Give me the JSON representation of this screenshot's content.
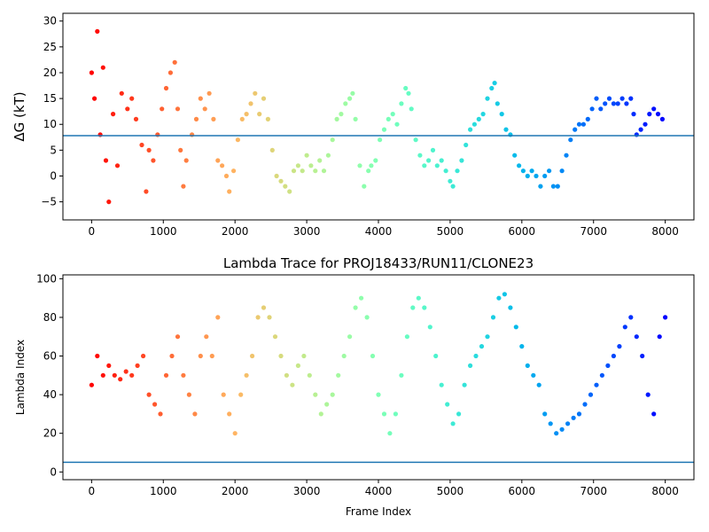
{
  "chart_data": [
    {
      "type": "scatter",
      "title": "",
      "xlabel": "",
      "ylabel": "ΔG (kT)",
      "xlim": [
        -400,
        8400
      ],
      "ylim": [
        -8.5,
        31.5
      ],
      "xticks": [
        0,
        1000,
        2000,
        3000,
        4000,
        5000,
        6000,
        7000,
        8000
      ],
      "yticks": [
        -5,
        0,
        5,
        10,
        15,
        20,
        25,
        30
      ],
      "colormap": "rainbow (red at frame 0 through cyan to violet at frame 8000)",
      "hline": 7.8,
      "hline_color": "#1f77b4",
      "series": [
        {
          "x": [
            0,
            40,
            80,
            120,
            160,
            200,
            240,
            300,
            360,
            420,
            500,
            560,
            620,
            700,
            760,
            800,
            860,
            920,
            980,
            1040,
            1100,
            1160,
            1200,
            1240,
            1280,
            1320,
            1400,
            1460,
            1520,
            1580,
            1640,
            1700,
            1760,
            1820,
            1880,
            1920,
            1980,
            2040,
            2100,
            2160,
            2220,
            2280,
            2340,
            2400,
            2460,
            2520,
            2580,
            2640,
            2700,
            2760,
            2820,
            2880,
            2940,
            3000,
            3060,
            3120,
            3180,
            3240,
            3300,
            3360,
            3420,
            3480,
            3540,
            3600,
            3640,
            3680,
            3740,
            3800,
            3860,
            3900,
            3960,
            4020,
            4080,
            4140,
            4200,
            4260,
            4320,
            4380,
            4420,
            4460,
            4520,
            4580,
            4640,
            4700,
            4760,
            4820,
            4880,
            4940,
            5000,
            5040,
            5100,
            5160,
            5220,
            5280,
            5340,
            5400,
            5460,
            5520,
            5580,
            5620,
            5660,
            5720,
            5780,
            5840,
            5900,
            5960,
            6020,
            6080,
            6140,
            6200,
            6260,
            6320,
            6380,
            6440,
            6500,
            6560,
            6620,
            6680,
            6740,
            6800,
            6860,
            6920,
            6980,
            7040,
            7100,
            7160,
            7220,
            7280,
            7340,
            7400,
            7460,
            7520,
            7560,
            7600,
            7660,
            7720,
            7780,
            7840,
            7900,
            7960
          ],
          "y": [
            20,
            15,
            28,
            8,
            21,
            3,
            -5,
            12,
            2,
            16,
            13,
            15,
            11,
            6,
            -3,
            5,
            3,
            8,
            13,
            17,
            20,
            22,
            13,
            5,
            -2,
            3,
            8,
            11,
            15,
            13,
            16,
            11,
            3,
            2,
            0,
            -3,
            1,
            7,
            11,
            12,
            14,
            16,
            12,
            15,
            11,
            5,
            0,
            -1,
            -2,
            -3,
            1,
            2,
            1,
            4,
            2,
            1,
            3,
            1,
            4,
            7,
            11,
            12,
            14,
            15,
            16,
            11,
            2,
            -2,
            1,
            2,
            3,
            7,
            9,
            11,
            12,
            10,
            14,
            17,
            16,
            13,
            7,
            4,
            2,
            3,
            5,
            2,
            3,
            1,
            -1,
            -2,
            1,
            3,
            6,
            9,
            10,
            11,
            12,
            15,
            17,
            18,
            14,
            12,
            9,
            8,
            4,
            2,
            1,
            0,
            1,
            0,
            -2,
            0,
            1,
            -2,
            -2,
            1,
            4,
            7,
            9,
            10,
            10,
            11,
            13,
            15,
            13,
            14,
            15,
            14,
            14,
            15,
            14,
            15,
            12,
            8,
            9,
            10,
            12,
            13,
            12,
            11
          ]
        }
      ]
    },
    {
      "type": "scatter",
      "title": "Lambda Trace for PROJ18433/RUN11/CLONE23",
      "xlabel": "Frame Index",
      "ylabel": "Lambda Index",
      "xlim": [
        -400,
        8400
      ],
      "ylim": [
        -4,
        102
      ],
      "xticks": [
        0,
        1000,
        2000,
        3000,
        4000,
        5000,
        6000,
        7000,
        8000
      ],
      "yticks": [
        0,
        20,
        40,
        60,
        80,
        100
      ],
      "colormap": "rainbow (red at frame 0 through cyan to violet at frame 8000)",
      "hline": 5,
      "hline_color": "#1f77b4",
      "series": [
        {
          "x": [
            0,
            80,
            160,
            240,
            320,
            400,
            480,
            560,
            640,
            720,
            800,
            880,
            960,
            1040,
            1120,
            1200,
            1280,
            1360,
            1440,
            1520,
            1600,
            1680,
            1760,
            1840,
            1920,
            2000,
            2080,
            2160,
            2240,
            2320,
            2400,
            2480,
            2560,
            2640,
            2720,
            2800,
            2880,
            2960,
            3040,
            3120,
            3200,
            3280,
            3360,
            3440,
            3520,
            3600,
            3680,
            3760,
            3840,
            3920,
            4000,
            4080,
            4160,
            4240,
            4320,
            4400,
            4480,
            4560,
            4640,
            4720,
            4800,
            4880,
            4960,
            5040,
            5120,
            5200,
            5280,
            5360,
            5440,
            5520,
            5600,
            5680,
            5760,
            5840,
            5920,
            6000,
            6080,
            6160,
            6240,
            6320,
            6400,
            6480,
            6560,
            6640,
            6720,
            6800,
            6880,
            6960,
            7040,
            7120,
            7200,
            7280,
            7360,
            7440,
            7520,
            7600,
            7680,
            7760,
            7840,
            7920,
            8000
          ],
          "y": [
            45,
            60,
            50,
            55,
            50,
            48,
            52,
            50,
            55,
            60,
            40,
            35,
            30,
            50,
            60,
            70,
            50,
            40,
            30,
            60,
            70,
            60,
            80,
            40,
            30,
            20,
            40,
            50,
            60,
            80,
            85,
            80,
            70,
            60,
            50,
            45,
            55,
            60,
            50,
            40,
            30,
            35,
            40,
            50,
            60,
            70,
            85,
            90,
            80,
            60,
            40,
            30,
            20,
            30,
            50,
            70,
            85,
            90,
            85,
            75,
            60,
            45,
            35,
            25,
            30,
            45,
            55,
            60,
            65,
            70,
            80,
            90,
            92,
            85,
            75,
            65,
            55,
            50,
            45,
            30,
            25,
            20,
            22,
            25,
            28,
            30,
            35,
            40,
            45,
            50,
            55,
            60,
            65,
            75,
            80,
            70,
            60,
            40,
            30,
            70,
            80
          ]
        }
      ]
    }
  ]
}
